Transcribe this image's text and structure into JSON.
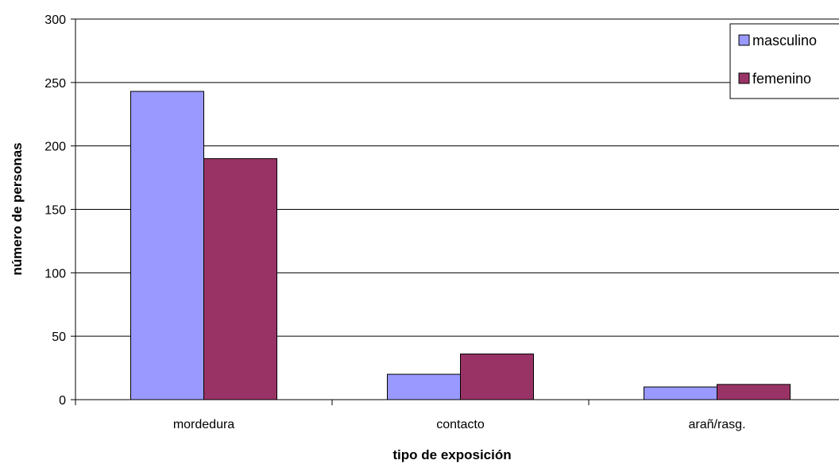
{
  "chart_data": {
    "type": "bar",
    "title": "",
    "xlabel": "tipo de exposición",
    "ylabel": "número de personas",
    "categories": [
      "mordedura",
      "contacto",
      "arañ/rasg."
    ],
    "series": [
      {
        "name": "masculino",
        "values": [
          243,
          20,
          10
        ],
        "color": "#9999ff"
      },
      {
        "name": "femenino",
        "values": [
          190,
          36,
          12
        ],
        "color": "#993366"
      }
    ],
    "ylim": [
      0,
      300
    ],
    "yticks": [
      0,
      50,
      100,
      150,
      200,
      250,
      300
    ],
    "grid": true,
    "legend_position": "top-right"
  }
}
